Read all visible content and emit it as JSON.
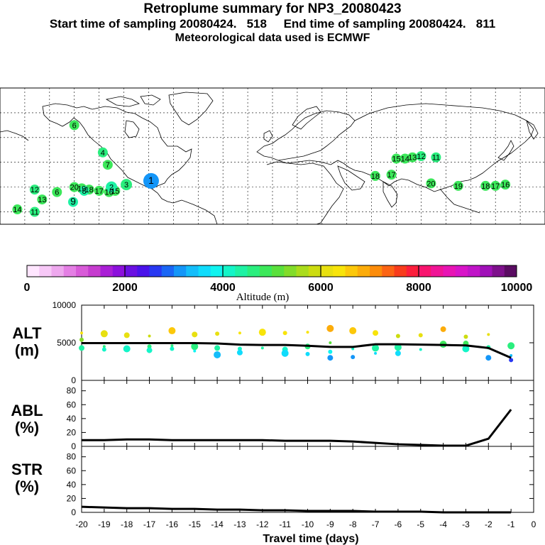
{
  "header": {
    "title": "Retroplume summary for NP3_20080423",
    "sampling": "Start time of sampling 20080424.   518     End time of sampling 20080424.   811",
    "met": "Meteorological data used is ECMWF"
  },
  "map": {
    "labels": [
      {
        "t": "15",
        "lon": 80,
        "lat": 23
      },
      {
        "t": "14",
        "lon": 87,
        "lat": 23
      },
      {
        "t": "13",
        "lon": 93,
        "lat": 24
      },
      {
        "t": "12",
        "lon": 100,
        "lat": 25
      },
      {
        "t": "11",
        "lon": 112,
        "lat": 24
      },
      {
        "t": "17",
        "lon": 76,
        "lat": 10
      },
      {
        "t": "18",
        "lon": 63,
        "lat": 9
      },
      {
        "t": "20",
        "lon": 108,
        "lat": 3
      },
      {
        "t": "19",
        "lon": 130,
        "lat": 1
      },
      {
        "t": "18",
        "lon": 152,
        "lat": 1
      },
      {
        "t": "17",
        "lon": 160,
        "lat": 1
      },
      {
        "t": "16",
        "lon": 168,
        "lat": 2
      },
      {
        "t": "20",
        "lon": -180,
        "lat": 0
      },
      {
        "t": "19",
        "lon": -174,
        "lat": -1
      },
      {
        "t": "18",
        "lon": -168,
        "lat": -2
      },
      {
        "t": "17",
        "lon": -160,
        "lat": -3
      },
      {
        "t": "16",
        "lon": -152,
        "lat": -4
      },
      {
        "t": "15",
        "lon": -147,
        "lat": -3
      },
      {
        "t": "1",
        "lon": -118,
        "lat": 5
      },
      {
        "t": "8",
        "lon": -172,
        "lat": -3
      },
      {
        "t": "9",
        "lon": -181,
        "lat": -12
      },
      {
        "t": "6",
        "lon": -194,
        "lat": -4
      },
      {
        "t": "12",
        "lon": -212,
        "lat": -2
      },
      {
        "t": "13",
        "lon": -206,
        "lat": -10
      },
      {
        "t": "14",
        "lon": -226,
        "lat": -18
      },
      {
        "t": "11",
        "lon": -212,
        "lat": -20
      },
      {
        "t": "3",
        "lon": -138,
        "lat": 2
      },
      {
        "t": "2",
        "lon": -150,
        "lat": 0
      },
      {
        "t": "7",
        "lon": -153,
        "lat": 18
      },
      {
        "t": "4",
        "lon": -157,
        "lat": 28
      },
      {
        "t": "6",
        "lon": -180,
        "lat": 50
      }
    ]
  },
  "colorbar": {
    "title": "Altitude (m)",
    "ticks": [
      "0",
      "2000",
      "4000",
      "6000",
      "8000",
      "10000"
    ],
    "colors": [
      "#ffe6ff",
      "#f7c8f7",
      "#eea8ee",
      "#e47fe4",
      "#d85bd8",
      "#c63ccf",
      "#aa1fd6",
      "#8c10dc",
      "#6a10e2",
      "#4a12ea",
      "#2838f2",
      "#1a66f5",
      "#1496f8",
      "#14bdfa",
      "#10dcfc",
      "#10f4f0",
      "#14f5c8",
      "#1ef2a4",
      "#2aee7e",
      "#3ce85a",
      "#5ae03c",
      "#82dc2a",
      "#aadc1c",
      "#ccdc10",
      "#e8e010",
      "#f8e40a",
      "#fcc80a",
      "#fcac0a",
      "#fc8c0a",
      "#fc6414",
      "#f83c1c",
      "#fc1e3c",
      "#f8146e",
      "#f01496",
      "#e814b4",
      "#d814c8",
      "#c014c8",
      "#a010b8",
      "#7e108c",
      "#5a0c62"
    ]
  },
  "charts": {
    "xlabel": "Travel time (days)",
    "xticks": [
      "-20",
      "-19",
      "-18",
      "-17",
      "-16",
      "-15",
      "-14",
      "-13",
      "-12",
      "-11",
      "-10",
      "-9",
      "-8",
      "-7",
      "-6",
      "-5",
      "-4",
      "-3",
      "-2",
      "-1",
      "0"
    ],
    "alt": {
      "label1": "ALT",
      "label2": "(m)",
      "yticks": [
        "0",
        "5000",
        "10000"
      ]
    },
    "abl": {
      "label1": "ABL",
      "label2": "(%)",
      "yticks": [
        "0",
        "20",
        "40",
        "60",
        "80"
      ]
    },
    "str": {
      "label1": "STR",
      "label2": "(%)",
      "yticks": [
        "0",
        "20",
        "40",
        "60",
        "80"
      ]
    }
  },
  "chart_data": [
    {
      "type": "line",
      "title": "ALT",
      "xlabel": "Travel time (days)",
      "ylabel": "(m)",
      "xlim": [
        -20,
        0
      ],
      "ylim": [
        0,
        10000
      ],
      "x": [
        -20,
        -19,
        -18,
        -17,
        -16,
        -15,
        -14,
        -13,
        -12,
        -11,
        -10,
        -9,
        -8,
        -7,
        -6,
        -5,
        -4,
        -3,
        -2,
        -1
      ],
      "values": [
        4950,
        4950,
        4950,
        4950,
        4950,
        4950,
        4900,
        4750,
        4700,
        4700,
        4600,
        4450,
        4450,
        4800,
        4800,
        4750,
        4700,
        4650,
        4300,
        3000
      ],
      "scatter_points": [
        [
          -20,
          6300
        ],
        [
          -20,
          5400
        ],
        [
          -20,
          4300
        ],
        [
          -19,
          6200
        ],
        [
          -19,
          4500
        ],
        [
          -19,
          4100
        ],
        [
          -18,
          6000
        ],
        [
          -18,
          4200
        ],
        [
          -17,
          5900
        ],
        [
          -17,
          4500
        ],
        [
          -17,
          4000
        ],
        [
          -16,
          6600
        ],
        [
          -16,
          4600
        ],
        [
          -16,
          4200
        ],
        [
          -15,
          6100
        ],
        [
          -15,
          4500
        ],
        [
          -15,
          3900
        ],
        [
          -14,
          6200
        ],
        [
          -14,
          4300
        ],
        [
          -14,
          3400
        ],
        [
          -13,
          6300
        ],
        [
          -13,
          4200
        ],
        [
          -13,
          3700
        ],
        [
          -12,
          6400
        ],
        [
          -12,
          4300
        ],
        [
          -11,
          6300
        ],
        [
          -11,
          4100
        ],
        [
          -11,
          3600
        ],
        [
          -10,
          6400
        ],
        [
          -10,
          3500
        ],
        [
          -10,
          4500
        ],
        [
          -9,
          6900
        ],
        [
          -9,
          5000
        ],
        [
          -9,
          3800
        ],
        [
          -9,
          3000
        ],
        [
          -8,
          6600
        ],
        [
          -8,
          4200
        ],
        [
          -8,
          3100
        ],
        [
          -7,
          6300
        ],
        [
          -7,
          4300
        ],
        [
          -7,
          3600
        ],
        [
          -6,
          5900
        ],
        [
          -6,
          3600
        ],
        [
          -6,
          4400
        ],
        [
          -5,
          4100
        ],
        [
          -5,
          6000
        ],
        [
          -4,
          6800
        ],
        [
          -4,
          4800
        ],
        [
          -4,
          4600
        ],
        [
          -3,
          5800
        ],
        [
          -3,
          4900
        ],
        [
          -3,
          4200
        ],
        [
          -2,
          6100
        ],
        [
          -2,
          4400
        ],
        [
          -2,
          3000
        ],
        [
          -1,
          4600
        ],
        [
          -1,
          3300
        ],
        [
          -1,
          2700
        ]
      ]
    },
    {
      "type": "line",
      "title": "ABL",
      "xlabel": "Travel time (days)",
      "ylabel": "(%)",
      "xlim": [
        -20,
        0
      ],
      "ylim": [
        0,
        95
      ],
      "x": [
        -20,
        -19,
        -18,
        -17,
        -16,
        -15,
        -14,
        -13,
        -12,
        -11,
        -10,
        -9,
        -8,
        -7,
        -6,
        -5,
        -4,
        -3,
        -2,
        -1
      ],
      "values": [
        9,
        9,
        10,
        10,
        9,
        9,
        9,
        9,
        9,
        8,
        8,
        8,
        7,
        5,
        3,
        2,
        1,
        1,
        11,
        53
      ]
    },
    {
      "type": "line",
      "title": "STR",
      "xlabel": "Travel time (days)",
      "ylabel": "(%)",
      "xlim": [
        -20,
        0
      ],
      "ylim": [
        0,
        95
      ],
      "x": [
        -20,
        -19,
        -18,
        -17,
        -16,
        -15,
        -14,
        -13,
        -12,
        -11,
        -10,
        -9,
        -8,
        -7,
        -6,
        -5,
        -4,
        -3,
        -2,
        -1
      ],
      "values": [
        8,
        7,
        6,
        6,
        5,
        5,
        4,
        4,
        3,
        3,
        2,
        2,
        2,
        1,
        1,
        1,
        0,
        0,
        0,
        0
      ]
    }
  ]
}
